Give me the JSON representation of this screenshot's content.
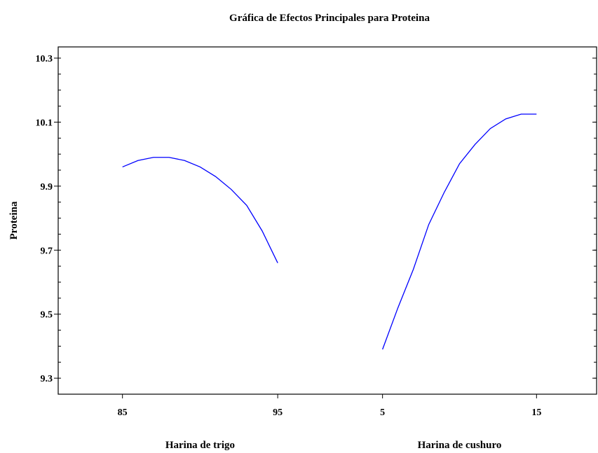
{
  "chart_data": {
    "type": "line",
    "title": "Gráfica de Efectos Principales para Proteina",
    "y_label": "Proteina",
    "ylim": [
      9.25,
      10.335
    ],
    "yticks": [
      9.3,
      9.5,
      9.7,
      9.9,
      10.1,
      10.3
    ],
    "color": "#0000ff",
    "panels": [
      {
        "name": "Harina de trigo",
        "xlim": [
          80.86,
          98.2
        ],
        "xticks": [
          85,
          95
        ],
        "x": [
          85,
          86,
          87,
          88,
          89,
          90,
          91,
          92,
          93,
          94,
          95
        ],
        "values": [
          9.96,
          9.98,
          9.99,
          9.99,
          9.98,
          9.96,
          9.93,
          9.89,
          9.84,
          9.76,
          9.66
        ]
      },
      {
        "name": "Harina de cushuro",
        "xlim": [
          1.42,
          18.9
        ],
        "xticks": [
          5,
          15
        ],
        "x": [
          5,
          6,
          7,
          8,
          9,
          10,
          11,
          12,
          13,
          14,
          15
        ],
        "values": [
          9.39,
          9.52,
          9.64,
          9.78,
          9.88,
          9.97,
          10.03,
          10.08,
          10.11,
          10.125,
          10.125
        ]
      }
    ]
  }
}
